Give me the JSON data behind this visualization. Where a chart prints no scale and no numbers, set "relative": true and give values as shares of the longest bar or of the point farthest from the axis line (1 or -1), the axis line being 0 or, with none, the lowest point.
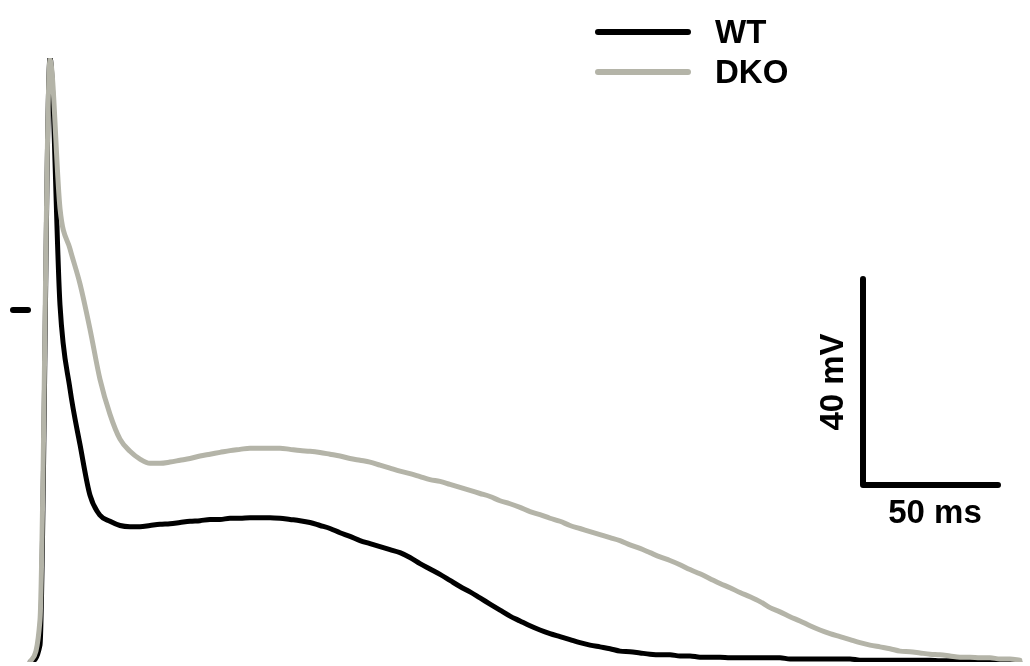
{
  "chart_data": {
    "type": "line",
    "relative": true,
    "legend": "top right",
    "marker": "none",
    "line_style": "solid",
    "annotations": [
      "40 mV",
      "50 ms"
    ],
    "categories": [
      null,
      null,
      null,
      null,
      null,
      null,
      null,
      null,
      null,
      null,
      null,
      null,
      null,
      null,
      null,
      null,
      null,
      null,
      null,
      null,
      null,
      null,
      null,
      null,
      null,
      null,
      null,
      null,
      null,
      null,
      null,
      null,
      null,
      null,
      null,
      null,
      null,
      null,
      null,
      null,
      null,
      null,
      null,
      null,
      null,
      null,
      null,
      null,
      null,
      null,
      null,
      null,
      null,
      null,
      null,
      null,
      null,
      null,
      null,
      null,
      null,
      null,
      null,
      null,
      null,
      null,
      null,
      null,
      null,
      null,
      null,
      null,
      null,
      null,
      null,
      null,
      null,
      null,
      null,
      null,
      null,
      null,
      null,
      null,
      null,
      null,
      null,
      null,
      null,
      null,
      null,
      null,
      null,
      null,
      null,
      null,
      null,
      null,
      null,
      null
    ],
    "series": [
      {
        "name": "WT",
        "color": "#000000",
        "values": [
          0,
          0.028,
          1,
          0.591,
          0.452,
          0.36,
          0.276,
          0.243,
          0.233,
          0.226,
          0.224,
          0.224,
          0.226,
          0.228,
          0.229,
          0.231,
          0.233,
          0.234,
          0.236,
          0.236,
          0.238,
          0.238,
          0.239,
          0.239,
          0.239,
          0.238,
          0.236,
          0.234,
          0.231,
          0.226,
          0.221,
          0.214,
          0.208,
          0.201,
          0.196,
          0.191,
          0.186,
          0.181,
          0.173,
          0.163,
          0.154,
          0.145,
          0.135,
          0.125,
          0.116,
          0.106,
          0.096,
          0.086,
          0.076,
          0.068,
          0.06,
          0.053,
          0.047,
          0.042,
          0.037,
          0.032,
          0.028,
          0.025,
          0.022,
          0.018,
          0.017,
          0.015,
          0.013,
          0.012,
          0.012,
          0.01,
          0.01,
          0.008,
          0.008,
          0.008,
          0.007,
          0.007,
          0.007,
          0.007,
          0.007,
          0.007,
          0.005,
          0.005,
          0.005,
          0.005,
          0.005,
          0.005,
          0.005,
          0.003,
          0.003,
          0.003,
          0.003,
          0.003,
          0.003,
          0.003,
          0.003,
          0.002,
          0.002,
          0.002,
          0.002,
          0.002,
          0.002,
          0.002,
          0,
          0
        ]
      },
      {
        "name": "DKO",
        "color": "#b4b4a8",
        "values": [
          0,
          0.07,
          0.997,
          0.751,
          0.684,
          0.626,
          0.551,
          0.468,
          0.41,
          0.369,
          0.349,
          0.336,
          0.329,
          0.329,
          0.331,
          0.334,
          0.337,
          0.341,
          0.344,
          0.347,
          0.35,
          0.352,
          0.354,
          0.354,
          0.354,
          0.354,
          0.352,
          0.35,
          0.349,
          0.347,
          0.344,
          0.341,
          0.337,
          0.334,
          0.331,
          0.326,
          0.321,
          0.316,
          0.312,
          0.307,
          0.302,
          0.299,
          0.294,
          0.289,
          0.284,
          0.279,
          0.274,
          0.267,
          0.262,
          0.256,
          0.249,
          0.244,
          0.238,
          0.233,
          0.226,
          0.221,
          0.216,
          0.211,
          0.206,
          0.201,
          0.194,
          0.188,
          0.181,
          0.174,
          0.168,
          0.161,
          0.153,
          0.146,
          0.138,
          0.13,
          0.123,
          0.115,
          0.108,
          0.1,
          0.09,
          0.083,
          0.075,
          0.068,
          0.06,
          0.053,
          0.047,
          0.042,
          0.037,
          0.032,
          0.028,
          0.025,
          0.022,
          0.018,
          0.017,
          0.015,
          0.013,
          0.012,
          0.01,
          0.008,
          0.008,
          0.007,
          0.007,
          0.005,
          0.005,
          0.003
        ]
      }
    ]
  }
}
